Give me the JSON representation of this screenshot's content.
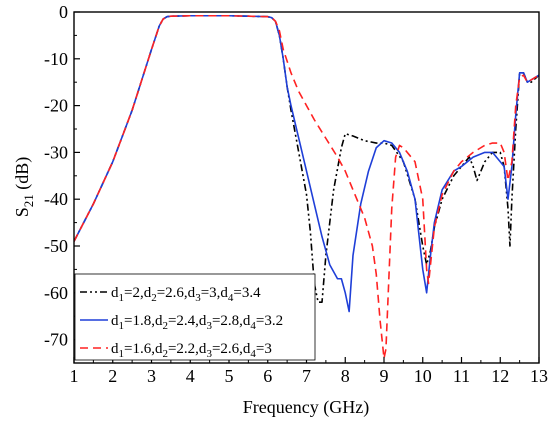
{
  "chart_data": {
    "type": "line",
    "xlabel": "Frequency (GHz)",
    "ylabel": "S21 (dB)",
    "ylabel_main": "S",
    "ylabel_sub": "21",
    "ylabel_unit": " (dB)",
    "xlim": [
      1,
      13
    ],
    "ylim": [
      -75,
      0
    ],
    "x_ticks": [
      1,
      2,
      3,
      4,
      5,
      6,
      7,
      8,
      9,
      10,
      11,
      12,
      13
    ],
    "y_ticks": [
      0,
      -10,
      -20,
      -30,
      -40,
      -50,
      -60,
      -70
    ],
    "grid": false,
    "legend_position": "bottom-left",
    "series": [
      {
        "label_parts": [
          "d",
          "1",
          "=2,d",
          "2",
          "=2.6,d",
          "3",
          "=3,d",
          "4",
          "=3.4"
        ],
        "color": "#000000",
        "dash": "dash-dot-dot",
        "x": [
          1.0,
          1.5,
          2.0,
          2.5,
          3.0,
          3.2,
          3.3,
          3.4,
          3.5,
          4.0,
          5.0,
          5.5,
          6.0,
          6.1,
          6.2,
          6.3,
          6.4,
          6.5,
          6.6,
          6.8,
          7.0,
          7.1,
          7.2,
          7.3,
          7.4,
          7.5,
          7.7,
          7.9,
          8.0,
          8.2,
          8.5,
          8.8,
          9.0,
          9.2,
          9.5,
          9.8,
          10.0,
          10.1,
          10.2,
          10.3,
          10.5,
          10.8,
          11.0,
          11.2,
          11.3,
          11.4,
          11.6,
          11.8,
          12.0,
          12.1,
          12.2,
          12.25,
          12.3,
          12.4,
          12.5,
          12.6,
          12.7,
          12.8,
          13.0
        ],
        "y": [
          -49,
          -41,
          -32,
          -21,
          -8,
          -3,
          -1.5,
          -1,
          -0.9,
          -0.8,
          -0.8,
          -0.9,
          -1,
          -1.2,
          -2,
          -5,
          -10,
          -16,
          -21,
          -30,
          -39,
          -47,
          -58,
          -62,
          -62,
          -52,
          -38,
          -29,
          -26,
          -26.5,
          -27.5,
          -28,
          -28,
          -28.5,
          -32,
          -40,
          -50,
          -54,
          -51,
          -46,
          -40,
          -35,
          -33,
          -31,
          -33,
          -36,
          -32,
          -30,
          -30,
          -33,
          -42,
          -50,
          -40,
          -25,
          -13,
          -13,
          -15,
          -15,
          -13.5
        ]
      },
      {
        "label_parts": [
          "d",
          "1",
          "=1.8,d",
          "2",
          "=2.4,d",
          "3",
          "=2.8,d",
          "4",
          "=3.2"
        ],
        "color": "#1f3fd8",
        "dash": "solid",
        "x": [
          1.0,
          1.5,
          2.0,
          2.5,
          3.0,
          3.2,
          3.3,
          3.4,
          3.5,
          4.0,
          5.0,
          5.5,
          6.0,
          6.1,
          6.2,
          6.3,
          6.4,
          6.5,
          6.6,
          6.8,
          7.0,
          7.2,
          7.4,
          7.6,
          7.8,
          7.9,
          8.0,
          8.1,
          8.2,
          8.4,
          8.6,
          8.8,
          9.0,
          9.2,
          9.4,
          9.6,
          9.8,
          10.0,
          10.1,
          10.2,
          10.3,
          10.5,
          10.8,
          11.0,
          11.3,
          11.6,
          11.8,
          12.0,
          12.1,
          12.2,
          12.3,
          12.4,
          12.5,
          12.6,
          12.7,
          12.8,
          13.0
        ],
        "y": [
          -49,
          -41,
          -32,
          -21,
          -8,
          -3,
          -1.5,
          -1,
          -0.9,
          -0.8,
          -0.8,
          -0.9,
          -1,
          -1.2,
          -2,
          -5,
          -10,
          -16,
          -20,
          -27,
          -34,
          -41,
          -48,
          -54,
          -57,
          -57,
          -60,
          -64,
          -52,
          -41,
          -34,
          -29,
          -27.5,
          -28,
          -30,
          -34,
          -40,
          -55,
          -60,
          -52,
          -45,
          -38,
          -34,
          -33,
          -31,
          -30,
          -30,
          -32,
          -33,
          -40,
          -33,
          -22,
          -13,
          -13,
          -15,
          -14.5,
          -13.5
        ]
      },
      {
        "label_parts": [
          "d",
          "1",
          "=1.6,d",
          "2",
          "=2.2,d",
          "3",
          "=2.6,d",
          "4",
          "=3"
        ],
        "color": "#ff2222",
        "dash": "dashed",
        "x": [
          1.0,
          1.5,
          2.0,
          2.5,
          3.0,
          3.2,
          3.3,
          3.4,
          3.5,
          4.0,
          5.0,
          5.5,
          6.0,
          6.1,
          6.2,
          6.3,
          6.4,
          6.6,
          6.8,
          7.0,
          7.2,
          7.5,
          7.8,
          8.0,
          8.2,
          8.5,
          8.7,
          8.8,
          8.9,
          9.0,
          9.05,
          9.1,
          9.2,
          9.3,
          9.4,
          9.5,
          9.8,
          10.0,
          10.1,
          10.15,
          10.2,
          10.3,
          10.5,
          10.8,
          11.0,
          11.3,
          11.6,
          11.8,
          12.0,
          12.1,
          12.2,
          12.3,
          12.4,
          12.5,
          12.6,
          12.7,
          12.8,
          13.0
        ],
        "y": [
          -49,
          -41,
          -32,
          -21,
          -8,
          -3,
          -1.5,
          -1,
          -0.9,
          -0.8,
          -0.8,
          -0.9,
          -1,
          -1.2,
          -2,
          -4,
          -8,
          -13,
          -17,
          -20,
          -23,
          -27,
          -31,
          -34,
          -38,
          -44,
          -50,
          -56,
          -66,
          -74,
          -72,
          -62,
          -42,
          -31,
          -28.5,
          -29,
          -32,
          -40,
          -55,
          -58,
          -54,
          -46,
          -39,
          -34,
          -32,
          -30,
          -28.5,
          -28,
          -28,
          -30,
          -36,
          -32,
          -20,
          -14,
          -13.5,
          -15,
          -14.5,
          -13.5
        ]
      }
    ]
  }
}
